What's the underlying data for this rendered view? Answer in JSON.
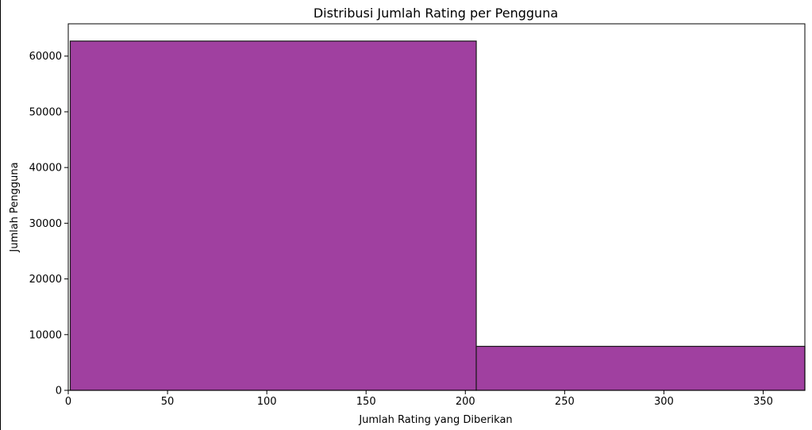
{
  "chart_data": {
    "type": "bar",
    "title": "Distribusi Jumlah Rating per Pengguna",
    "xlabel": "Jumlah Rating yang Diberikan",
    "ylabel": "Jumlah Pengguna",
    "bins": [
      {
        "x0": 1,
        "x1": 205.5,
        "value": 62700
      },
      {
        "x0": 205.5,
        "x1": 371,
        "value": 7900
      }
    ],
    "xlim": [
      0,
      371
    ],
    "ylim": [
      0,
      65800
    ],
    "xticks": [
      0,
      50,
      100,
      150,
      200,
      250,
      300,
      350
    ],
    "yticks": [
      0,
      10000,
      20000,
      30000,
      40000,
      50000,
      60000
    ],
    "grid": false,
    "colors": {
      "bar_fill": "#a040a0",
      "bar_edge": "#1a1a1a"
    }
  }
}
